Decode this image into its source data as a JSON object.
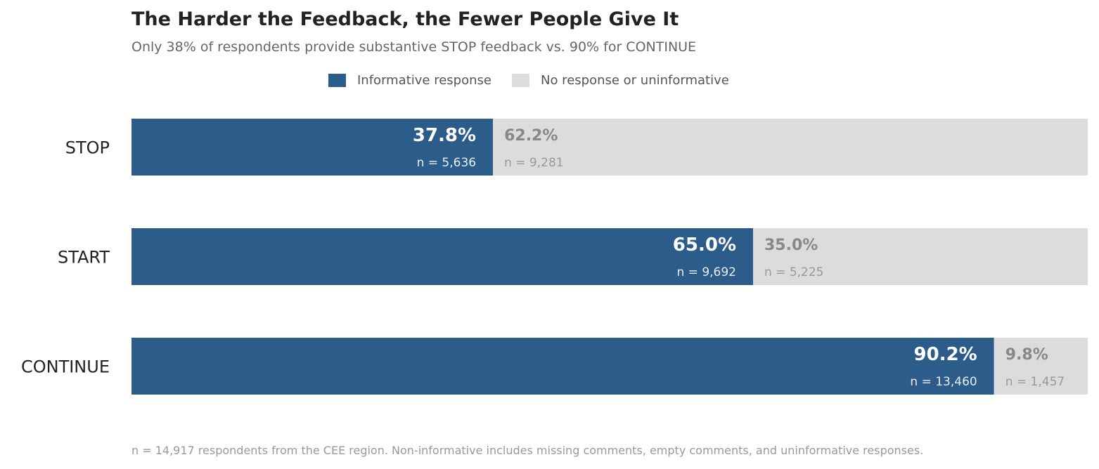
{
  "title": "The Harder the Feedback, the Fewer People Give It",
  "subtitle": "Only 38% of respondents provide substantive STOP feedback vs. 90% for CONTINUE",
  "footnote": "n = 14,917 respondents from the CEE region. Non-informative includes missing comments, empty comments, and uninformative responses.",
  "colors": {
    "informative": "#2b5c8a",
    "uninformative": "#dcdcdc",
    "label_on_dark": "#ffffff",
    "label_on_light": "#888888",
    "n_on_dark": "#e8eef5",
    "n_on_light": "#999999",
    "category_text": "#222222"
  },
  "legend": [
    {
      "label": "Informative response",
      "color": "#2b5c8a"
    },
    {
      "label": "No response or uninformative",
      "color": "#dcdcdc"
    }
  ],
  "chart_data": {
    "type": "bar",
    "orientation": "horizontal",
    "stacked": true,
    "title": "The Harder the Feedback, the Fewer People Give It",
    "subtitle": "Only 38% of respondents provide substantive STOP feedback vs. 90% for CONTINUE",
    "xlabel": "",
    "ylabel": "",
    "xlim": [
      0,
      100
    ],
    "grid": false,
    "legend_position": "top-center",
    "categories": [
      "STOP",
      "START",
      "CONTINUE"
    ],
    "series": [
      {
        "name": "Informative response",
        "values": [
          37.8,
          65.0,
          90.2
        ],
        "labels": [
          "37.8%",
          "65.0%",
          "90.2%"
        ],
        "n_labels": [
          "n = 5,636",
          "n = 9,692",
          "n = 13,460"
        ]
      },
      {
        "name": "No response or uninformative",
        "values": [
          62.2,
          35.0,
          9.8
        ],
        "labels": [
          "62.2%",
          "35.0%",
          "9.8%"
        ],
        "n_labels": [
          "n = 9,281",
          "n = 5,225",
          "n = 1,457"
        ]
      }
    ]
  }
}
